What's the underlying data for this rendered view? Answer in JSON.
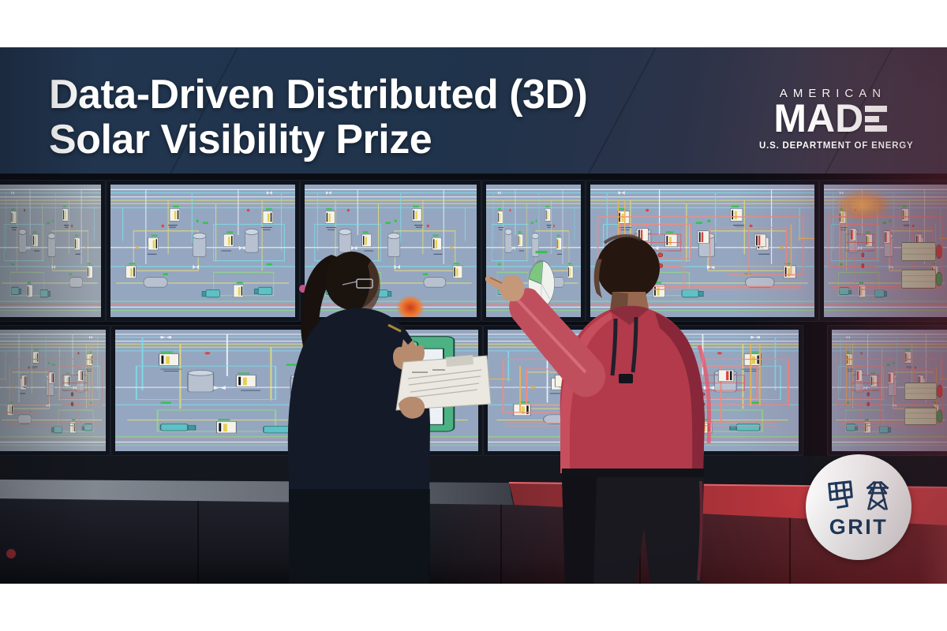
{
  "header": {
    "title_line1": "Data-Driven Distributed (3D)",
    "title_line2": "Solar Visibility Prize"
  },
  "brand": {
    "american": "AMERICAN",
    "made": "MADE",
    "tagline": "U.S. DEPARTMENT OF ENERGY"
  },
  "grit_badge": {
    "label": "GRIT",
    "icons": [
      "solar-panel-icon",
      "transmission-tower-icon"
    ]
  },
  "colors": {
    "header_navy": "#22364e",
    "header_plum": "#4b3a4d",
    "title_white": "#ffffff",
    "screen_bg": "#95a7c0",
    "line_cyan": "#7fd8e6",
    "line_yellow": "#ddd87e",
    "line_red": "#ee8b84",
    "line_green": "#93d48c",
    "shirt_red": "#b23a4b",
    "grit_navy": "#1d3c5f",
    "glow_red": "#a62f36"
  }
}
